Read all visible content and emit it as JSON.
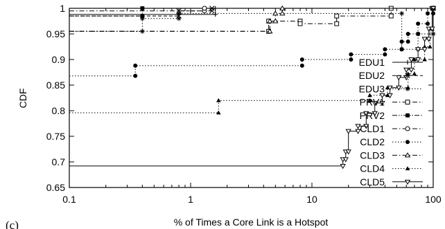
{
  "chart_data": {
    "type": "line",
    "panel_label": "(c)",
    "xlabel": "% of Times a Core Link is a Hotspot",
    "ylabel": "CDF",
    "xscale": "log",
    "xlim": [
      0.1,
      100
    ],
    "ylim": [
      0.65,
      1.0
    ],
    "x_ticks": [
      {
        "value": 0.1,
        "label": "0.1"
      },
      {
        "value": 1,
        "label": "1"
      },
      {
        "value": 10,
        "label": "10"
      },
      {
        "value": 100,
        "label": "100"
      }
    ],
    "y_ticks": [
      {
        "value": 0.65,
        "label": "0.65"
      },
      {
        "value": 0.7,
        "label": "0.7"
      },
      {
        "value": 0.75,
        "label": "0.75"
      },
      {
        "value": 0.8,
        "label": "0.8"
      },
      {
        "value": 0.85,
        "label": "0.85"
      },
      {
        "value": 0.9,
        "label": "0.9"
      },
      {
        "value": 0.95,
        "label": "0.95"
      },
      {
        "value": 1,
        "label": "1"
      }
    ],
    "grid": false,
    "legend_position": "inside-right",
    "series": [
      {
        "name": "EDU1",
        "marker": "plus",
        "dash": "solid",
        "color": "#000000",
        "points": [
          [
            0.1,
            0.988
          ],
          [
            1.6,
            0.988
          ],
          [
            1.6,
            1.0
          ],
          [
            100,
            1.0
          ]
        ]
      },
      {
        "name": "EDU2",
        "marker": "x",
        "dash": "dashed",
        "color": "#000000",
        "points": [
          [
            0.1,
            0.985
          ],
          [
            0.8,
            0.985
          ],
          [
            0.8,
            0.995
          ],
          [
            1.5,
            0.995
          ],
          [
            1.5,
            1.0
          ],
          [
            100,
            1.0
          ]
        ]
      },
      {
        "name": "EDU3",
        "marker": "star",
        "dash": "dotted",
        "color": "#000000",
        "points": [
          [
            0.1,
            0.955
          ],
          [
            0.4,
            0.955
          ],
          [
            0.4,
            0.98
          ],
          [
            0.8,
            0.98
          ],
          [
            0.8,
            0.99
          ],
          [
            55,
            0.99
          ],
          [
            55,
            0.92
          ],
          [
            75,
            0.92
          ],
          [
            75,
            0.95
          ],
          [
            100,
            0.95
          ]
        ]
      },
      {
        "name": "PRV1",
        "marker": "open-square",
        "dash": "dashdot",
        "color": "#000000",
        "points": [
          [
            0.1,
            0.955
          ],
          [
            4.4,
            0.955
          ],
          [
            4.4,
            0.975
          ],
          [
            8,
            0.975
          ],
          [
            8,
            0.97
          ],
          [
            16,
            0.97
          ],
          [
            16,
            0.985
          ],
          [
            45,
            0.985
          ],
          [
            45,
            1.0
          ],
          [
            100,
            1.0
          ]
        ]
      },
      {
        "name": "PRV2",
        "marker": "filled-square",
        "dash": "dashdotdot",
        "color": "#000000",
        "points": [
          [
            0.1,
            0.985
          ],
          [
            0.4,
            0.985
          ],
          [
            0.4,
            1.0
          ],
          [
            100,
            1.0
          ]
        ]
      },
      {
        "name": "CLD1",
        "marker": "open-circle",
        "dash": "dashdot",
        "color": "#000000",
        "points": [
          [
            0.1,
            0.995
          ],
          [
            1.3,
            0.995
          ],
          [
            1.3,
            1.0
          ],
          [
            100,
            1.0
          ]
        ]
      },
      {
        "name": "CLD2",
        "marker": "filled-circle",
        "dash": "dotted",
        "color": "#000000",
        "points": [
          [
            0.1,
            0.868
          ],
          [
            0.35,
            0.868
          ],
          [
            0.35,
            0.888
          ],
          [
            8.3,
            0.888
          ],
          [
            8.3,
            0.9
          ],
          [
            21,
            0.9
          ],
          [
            21,
            0.91
          ],
          [
            40,
            0.91
          ],
          [
            40,
            0.92
          ],
          [
            55,
            0.92
          ],
          [
            55,
            0.935
          ],
          [
            62,
            0.935
          ],
          [
            62,
            0.95
          ],
          [
            75,
            0.95
          ],
          [
            75,
            0.97
          ],
          [
            90,
            0.97
          ],
          [
            90,
            0.99
          ],
          [
            100,
            0.99
          ],
          [
            100,
            1.0
          ]
        ]
      },
      {
        "name": "CLD3",
        "marker": "open-triangle",
        "dash": "dashdot",
        "color": "#000000",
        "points": [
          [
            0.1,
            0.955
          ],
          [
            4.5,
            0.955
          ],
          [
            4.5,
            0.975
          ],
          [
            5,
            0.975
          ],
          [
            5,
            0.99
          ],
          [
            5.7,
            0.99
          ],
          [
            5.7,
            1.0
          ],
          [
            100,
            1.0
          ]
        ]
      },
      {
        "name": "CLD4",
        "marker": "filled-triangle",
        "dash": "dotted",
        "color": "#000000",
        "points": [
          [
            0.1,
            0.796
          ],
          [
            1.7,
            0.796
          ],
          [
            1.7,
            0.82
          ],
          [
            30,
            0.82
          ],
          [
            30,
            0.83
          ],
          [
            42,
            0.83
          ],
          [
            42,
            0.845
          ],
          [
            62,
            0.845
          ],
          [
            62,
            0.872
          ],
          [
            70,
            0.872
          ],
          [
            70,
            0.9
          ],
          [
            85,
            0.9
          ],
          [
            85,
            0.925
          ],
          [
            94,
            0.925
          ],
          [
            94,
            0.96
          ],
          [
            98,
            0.96
          ],
          [
            98,
            1.0
          ],
          [
            100,
            1.0
          ]
        ]
      },
      {
        "name": "CLD5",
        "marker": "open-inverted-triangle",
        "dash": "solid",
        "color": "#000000",
        "points": [
          [
            0.1,
            0.692
          ],
          [
            18,
            0.692
          ],
          [
            18,
            0.705
          ],
          [
            19,
            0.705
          ],
          [
            19,
            0.72
          ],
          [
            20,
            0.72
          ],
          [
            20,
            0.76
          ],
          [
            24,
            0.76
          ],
          [
            24,
            0.77
          ],
          [
            28,
            0.77
          ],
          [
            28,
            0.795
          ],
          [
            33,
            0.795
          ],
          [
            33,
            0.815
          ],
          [
            38,
            0.815
          ],
          [
            38,
            0.83
          ],
          [
            44,
            0.83
          ],
          [
            44,
            0.845
          ],
          [
            52,
            0.845
          ],
          [
            52,
            0.865
          ],
          [
            60,
            0.865
          ],
          [
            60,
            0.88
          ],
          [
            66,
            0.88
          ],
          [
            66,
            0.9
          ],
          [
            75,
            0.9
          ],
          [
            75,
            0.92
          ],
          [
            85,
            0.92
          ],
          [
            85,
            0.94
          ],
          [
            92,
            0.94
          ],
          [
            92,
            0.96
          ],
          [
            98,
            0.96
          ],
          [
            98,
            1.0
          ],
          [
            100,
            1.0
          ]
        ]
      }
    ]
  }
}
